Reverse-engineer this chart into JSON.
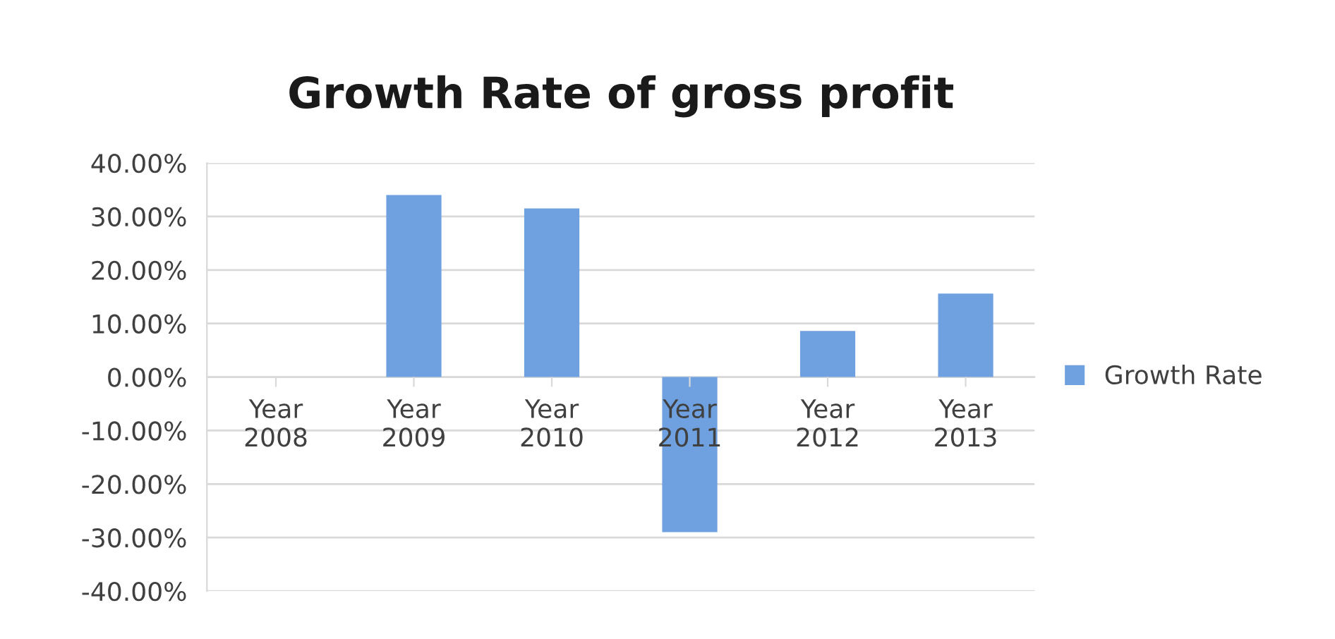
{
  "chart_data": {
    "type": "bar",
    "title": "Growth Rate of gross profit",
    "categories": [
      "Year\n2008",
      "Year\n2009",
      "Year\n2010",
      "Year\n2011",
      "Year\n2012",
      "Year\n2013"
    ],
    "series": [
      {
        "name": "Growth Rate",
        "color": "#6fa1e0",
        "values": [
          null,
          34.0,
          31.5,
          -29.0,
          8.6,
          15.6
        ]
      }
    ],
    "ylim": [
      -40,
      40
    ],
    "yticks": [
      {
        "value": -40,
        "label": "-40.00%"
      },
      {
        "value": -30,
        "label": "-30.00%"
      },
      {
        "value": -20,
        "label": "-20.00%"
      },
      {
        "value": -10,
        "label": "-10.00%"
      },
      {
        "value": 0,
        "label": "0.00%"
      },
      {
        "value": 10,
        "label": "10.00%"
      },
      {
        "value": 20,
        "label": "20.00%"
      },
      {
        "value": 30,
        "label": "30.00%"
      },
      {
        "value": 40,
        "label": "40.00%"
      }
    ],
    "grid": "y",
    "legend": "right"
  }
}
